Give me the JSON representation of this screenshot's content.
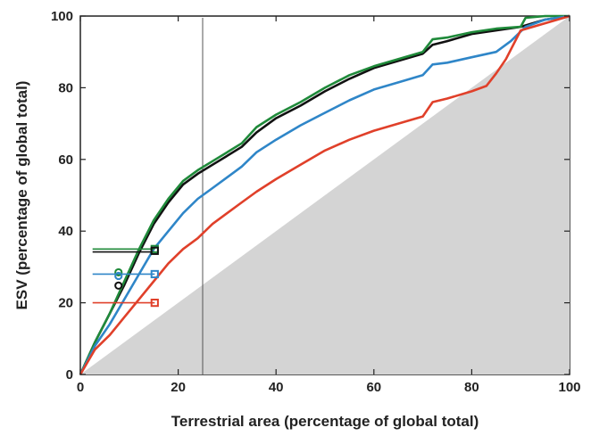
{
  "chart_data": {
    "type": "line",
    "title": "",
    "xlabel": "Terrestrial area (percentage of global total)",
    "ylabel": "ESV (percentage of global total)",
    "xlim": [
      0,
      100
    ],
    "ylim": [
      0,
      100
    ],
    "xticks": [
      0,
      20,
      40,
      60,
      80,
      100
    ],
    "yticks": [
      0,
      20,
      40,
      60,
      80,
      100
    ],
    "grid": false,
    "legend": "none",
    "reference_vertical_line_x": 25,
    "shaded_region": "area below the 1:1 diagonal",
    "colors": {
      "black": "#111111",
      "green": "#1f8a3a",
      "blue": "#2f86c8",
      "red": "#e0402a",
      "shade": "#d4d4d4",
      "vline": "#555555"
    },
    "series": [
      {
        "color_key": "black",
        "x": [
          0,
          3,
          6,
          9,
          12,
          15,
          18,
          21,
          24,
          27,
          30,
          33,
          36,
          40,
          45,
          50,
          55,
          60,
          65,
          70,
          72,
          75,
          80,
          85,
          90,
          95,
          100
        ],
        "y": [
          0,
          9,
          17,
          25,
          34,
          42,
          48,
          53,
          56,
          58.5,
          61,
          63.5,
          67.5,
          71.5,
          75,
          79,
          82.5,
          85.5,
          87.5,
          89.5,
          92,
          93,
          95,
          96,
          97,
          99,
          100
        ]
      },
      {
        "color_key": "green",
        "x": [
          0,
          3,
          6,
          9,
          12,
          15,
          18,
          21,
          24,
          27,
          30,
          33,
          36,
          40,
          45,
          50,
          55,
          60,
          65,
          70,
          72,
          75,
          80,
          85,
          90,
          91,
          95,
          100
        ],
        "y": [
          0,
          9,
          17,
          26,
          35,
          43,
          49,
          54,
          57,
          59.5,
          62,
          64.5,
          69,
          72.5,
          76,
          80,
          83.5,
          86,
          88,
          90,
          93.5,
          94,
          95.5,
          96.5,
          97,
          99.5,
          100,
          100
        ]
      },
      {
        "color_key": "blue",
        "x": [
          0,
          3,
          6,
          9,
          12,
          15,
          18,
          21,
          24,
          27,
          30,
          33,
          36,
          40,
          45,
          50,
          55,
          60,
          65,
          70,
          72,
          75,
          80,
          85,
          88,
          91,
          95,
          100
        ],
        "y": [
          0,
          8,
          14,
          21,
          28,
          35,
          40,
          45,
          49,
          52,
          55,
          58,
          62,
          65.5,
          69.5,
          73,
          76.5,
          79.5,
          81.5,
          83.5,
          86.5,
          87,
          88.5,
          90,
          93,
          97,
          99,
          100
        ]
      },
      {
        "color_key": "red",
        "x": [
          0,
          3,
          6,
          9,
          12,
          15,
          18,
          21,
          24,
          27,
          30,
          33,
          36,
          40,
          45,
          50,
          55,
          60,
          65,
          70,
          72,
          75,
          80,
          83,
          85,
          87,
          90,
          100
        ],
        "y": [
          0,
          7,
          11,
          16,
          21,
          26,
          31,
          35,
          38,
          42,
          45,
          48,
          51,
          54.5,
          58.5,
          62.5,
          65.5,
          68,
          70,
          72,
          76,
          77,
          79,
          80.5,
          84,
          88,
          96,
          100
        ]
      }
    ],
    "markers": [
      {
        "color_key": "green",
        "shape": "circle",
        "x": 7.8,
        "y": 28.5
      },
      {
        "color_key": "green",
        "shape": "square",
        "x": 15.2,
        "y": 35
      },
      {
        "color_key": "black",
        "shape": "circle",
        "x": 7.8,
        "y": 24.8
      },
      {
        "color_key": "black",
        "shape": "square",
        "x": 15.2,
        "y": 34.5
      },
      {
        "color_key": "blue",
        "shape": "circle",
        "x": 7.8,
        "y": 27.5
      },
      {
        "color_key": "blue",
        "shape": "square",
        "x": 15.2,
        "y": 28
      },
      {
        "color_key": "red",
        "shape": "square",
        "x": 15.2,
        "y": 20
      }
    ],
    "hlines": [
      {
        "color_key": "green",
        "x0": 2.5,
        "x1": 15.2,
        "y": 35
      },
      {
        "color_key": "black",
        "x0": 2.5,
        "x1": 15.2,
        "y": 34.2
      },
      {
        "color_key": "blue",
        "x0": 2.5,
        "x1": 15.2,
        "y": 28
      },
      {
        "color_key": "red",
        "x0": 2.5,
        "x1": 15.2,
        "y": 20
      }
    ]
  }
}
